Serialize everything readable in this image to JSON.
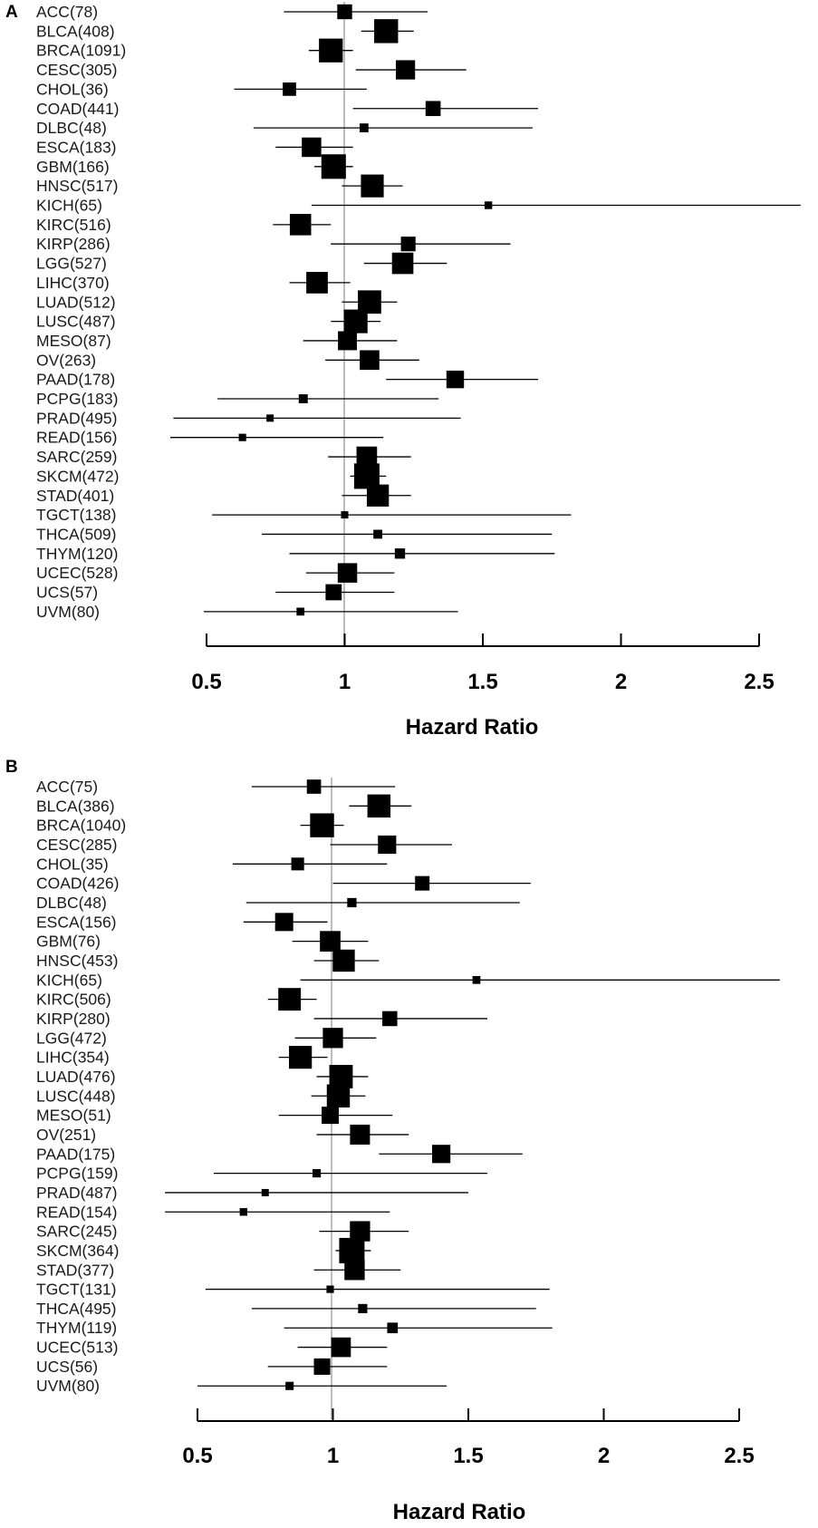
{
  "chart_data": [
    {
      "panel": "A",
      "type": "forest",
      "xlabel": "Hazard Ratio",
      "reference_line": 1,
      "xlim": [
        0.5,
        2.5
      ],
      "xticks": [
        0.5,
        1,
        1.5,
        2,
        2.5
      ],
      "xtick_labels": [
        "0.5",
        "1",
        "1.5",
        "2",
        "2.5"
      ],
      "rows": [
        {
          "label": "ACC(78)",
          "hr": 1.0,
          "low": 0.78,
          "high": 1.3
        },
        {
          "label": "BLCA(408)",
          "hr": 1.15,
          "low": 1.06,
          "high": 1.25
        },
        {
          "label": "BRCA(1091)",
          "hr": 0.95,
          "low": 0.87,
          "high": 1.03
        },
        {
          "label": "CESC(305)",
          "hr": 1.22,
          "low": 1.04,
          "high": 1.44
        },
        {
          "label": "CHOL(36)",
          "hr": 0.8,
          "low": 0.6,
          "high": 1.08
        },
        {
          "label": "COAD(441)",
          "hr": 1.32,
          "low": 1.03,
          "high": 1.7
        },
        {
          "label": "DLBC(48)",
          "hr": 1.07,
          "low": 0.67,
          "high": 1.68
        },
        {
          "label": "ESCA(183)",
          "hr": 0.88,
          "low": 0.75,
          "high": 1.03
        },
        {
          "label": "GBM(166)",
          "hr": 0.96,
          "low": 0.89,
          "high": 1.03
        },
        {
          "label": "HNSC(517)",
          "hr": 1.1,
          "low": 0.99,
          "high": 1.21
        },
        {
          "label": "KICH(65)",
          "hr": 1.52,
          "low": 0.88,
          "high": 2.65
        },
        {
          "label": "KIRC(516)",
          "hr": 0.84,
          "low": 0.74,
          "high": 0.95
        },
        {
          "label": "KIRP(286)",
          "hr": 1.23,
          "low": 0.95,
          "high": 1.6
        },
        {
          "label": "LGG(527)",
          "hr": 1.21,
          "low": 1.07,
          "high": 1.37
        },
        {
          "label": "LIHC(370)",
          "hr": 0.9,
          "low": 0.8,
          "high": 1.02
        },
        {
          "label": "LUAD(512)",
          "hr": 1.09,
          "low": 0.99,
          "high": 1.19
        },
        {
          "label": "LUSC(487)",
          "hr": 1.04,
          "low": 0.95,
          "high": 1.13
        },
        {
          "label": "MESO(87)",
          "hr": 1.01,
          "low": 0.85,
          "high": 1.19
        },
        {
          "label": "OV(263)",
          "hr": 1.09,
          "low": 0.93,
          "high": 1.27
        },
        {
          "label": "PAAD(178)",
          "hr": 1.4,
          "low": 1.15,
          "high": 1.7
        },
        {
          "label": "PCPG(183)",
          "hr": 0.85,
          "low": 0.54,
          "high": 1.34
        },
        {
          "label": "PRAD(495)",
          "hr": 0.73,
          "low": 0.38,
          "high": 1.42
        },
        {
          "label": "READ(156)",
          "hr": 0.63,
          "low": 0.35,
          "high": 1.14
        },
        {
          "label": "SARC(259)",
          "hr": 1.08,
          "low": 0.94,
          "high": 1.24
        },
        {
          "label": "SKCM(472)",
          "hr": 1.08,
          "low": 1.02,
          "high": 1.15
        },
        {
          "label": "STAD(401)",
          "hr": 1.12,
          "low": 0.99,
          "high": 1.24
        },
        {
          "label": "TGCT(138)",
          "hr": 1.0,
          "low": 0.52,
          "high": 1.82
        },
        {
          "label": "THCA(509)",
          "hr": 1.12,
          "low": 0.7,
          "high": 1.75
        },
        {
          "label": "THYM(120)",
          "hr": 1.2,
          "low": 0.8,
          "high": 1.76
        },
        {
          "label": "UCEC(528)",
          "hr": 1.01,
          "low": 0.86,
          "high": 1.18
        },
        {
          "label": "UCS(57)",
          "hr": 0.96,
          "low": 0.75,
          "high": 1.18
        },
        {
          "label": "UVM(80)",
          "hr": 0.84,
          "low": 0.49,
          "high": 1.41
        }
      ]
    },
    {
      "panel": "B",
      "type": "forest",
      "xlabel": "Hazard Ratio",
      "reference_line": 1,
      "xlim": [
        0.5,
        2.5
      ],
      "xticks": [
        0.5,
        1,
        1.5,
        2,
        2.5
      ],
      "xtick_labels": [
        "0.5",
        "1",
        "1.5",
        "2",
        "2.5"
      ],
      "rows": [
        {
          "label": "ACC(75)",
          "hr": 0.93,
          "low": 0.7,
          "high": 1.23
        },
        {
          "label": "BLCA(386)",
          "hr": 1.17,
          "low": 1.06,
          "high": 1.29
        },
        {
          "label": "BRCA(1040)",
          "hr": 0.96,
          "low": 0.88,
          "high": 1.04
        },
        {
          "label": "CESC(285)",
          "hr": 1.2,
          "low": 0.99,
          "high": 1.44
        },
        {
          "label": "CHOL(35)",
          "hr": 0.87,
          "low": 0.63,
          "high": 1.2
        },
        {
          "label": "COAD(426)",
          "hr": 1.33,
          "low": 1.0,
          "high": 1.73
        },
        {
          "label": "DLBC(48)",
          "hr": 1.07,
          "low": 0.68,
          "high": 1.69
        },
        {
          "label": "ESCA(156)",
          "hr": 0.82,
          "low": 0.67,
          "high": 0.98
        },
        {
          "label": "GBM(76)",
          "hr": 0.99,
          "low": 0.85,
          "high": 1.13
        },
        {
          "label": "HNSC(453)",
          "hr": 1.04,
          "low": 0.93,
          "high": 1.17
        },
        {
          "label": "KICH(65)",
          "hr": 1.53,
          "low": 0.88,
          "high": 2.65
        },
        {
          "label": "KIRC(506)",
          "hr": 0.84,
          "low": 0.76,
          "high": 0.94
        },
        {
          "label": "KIRP(280)",
          "hr": 1.21,
          "low": 0.93,
          "high": 1.57
        },
        {
          "label": "LGG(472)",
          "hr": 1.0,
          "low": 0.86,
          "high": 1.16
        },
        {
          "label": "LIHC(354)",
          "hr": 0.88,
          "low": 0.8,
          "high": 0.98
        },
        {
          "label": "LUAD(476)",
          "hr": 1.03,
          "low": 0.94,
          "high": 1.13
        },
        {
          "label": "LUSC(448)",
          "hr": 1.02,
          "low": 0.92,
          "high": 1.12
        },
        {
          "label": "MESO(51)",
          "hr": 0.99,
          "low": 0.8,
          "high": 1.22
        },
        {
          "label": "OV(251)",
          "hr": 1.1,
          "low": 0.94,
          "high": 1.28
        },
        {
          "label": "PAAD(175)",
          "hr": 1.4,
          "low": 1.17,
          "high": 1.7
        },
        {
          "label": "PCPG(159)",
          "hr": 0.94,
          "low": 0.56,
          "high": 1.57
        },
        {
          "label": "PRAD(487)",
          "hr": 0.75,
          "low": 0.38,
          "high": 1.5
        },
        {
          "label": "READ(154)",
          "hr": 0.67,
          "low": 0.38,
          "high": 1.21
        },
        {
          "label": "SARC(245)",
          "hr": 1.1,
          "low": 0.95,
          "high": 1.28
        },
        {
          "label": "SKCM(364)",
          "hr": 1.07,
          "low": 1.01,
          "high": 1.14
        },
        {
          "label": "STAD(377)",
          "hr": 1.08,
          "low": 0.93,
          "high": 1.25
        },
        {
          "label": "TGCT(131)",
          "hr": 0.99,
          "low": 0.53,
          "high": 1.8
        },
        {
          "label": "THCA(495)",
          "hr": 1.11,
          "low": 0.7,
          "high": 1.75
        },
        {
          "label": "THYM(119)",
          "hr": 1.22,
          "low": 0.82,
          "high": 1.81
        },
        {
          "label": "UCEC(513)",
          "hr": 1.03,
          "low": 0.87,
          "high": 1.2
        },
        {
          "label": "UCS(56)",
          "hr": 0.96,
          "low": 0.76,
          "high": 1.2
        },
        {
          "label": "UVM(80)",
          "hr": 0.84,
          "low": 0.5,
          "high": 1.42
        }
      ]
    }
  ]
}
